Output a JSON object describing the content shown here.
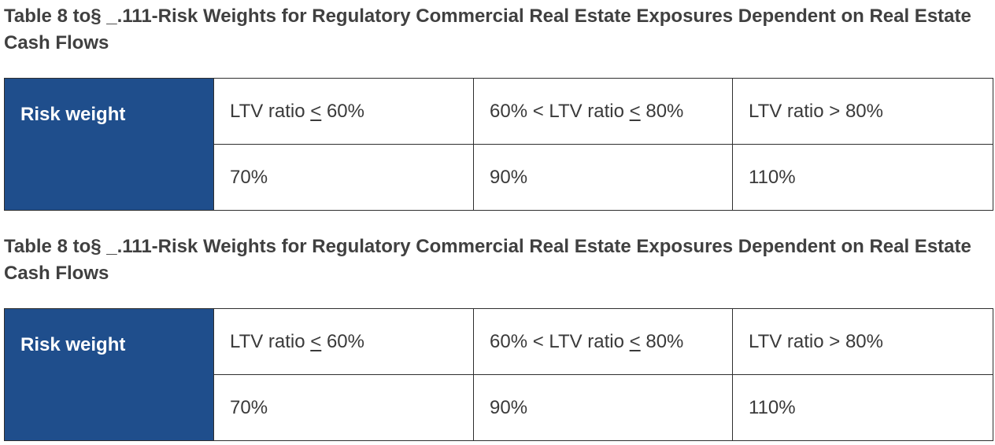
{
  "tables": [
    {
      "title": "Table 8 to§ _.111-Risk Weights for Regulatory Commercial Real Estate Exposures Dependent on Real Estate Cash Flows",
      "row_header": "Risk weight",
      "columns": [
        {
          "prefix": "LTV ratio ",
          "operator": "<",
          "suffix": " 60%"
        },
        {
          "prefix": "60% < LTV ratio ",
          "operator": "<",
          "suffix": " 80%"
        },
        {
          "prefix": "LTV ratio > 80%",
          "operator": "",
          "suffix": ""
        }
      ],
      "values": [
        "70%",
        "90%",
        "110%"
      ]
    },
    {
      "title": "Table 8 to§ _.111-Risk Weights for Regulatory Commercial Real Estate Exposures Dependent on Real Estate Cash Flows",
      "row_header": "Risk weight",
      "columns": [
        {
          "prefix": "LTV ratio ",
          "operator": "<",
          "suffix": " 60%"
        },
        {
          "prefix": "60% < LTV ratio ",
          "operator": "<",
          "suffix": " 80%"
        },
        {
          "prefix": "LTV ratio > 80%",
          "operator": "",
          "suffix": ""
        }
      ],
      "values": [
        "70%",
        "90%",
        "110%"
      ]
    }
  ],
  "colors": {
    "header_fill": "#1f4e8c",
    "header_text": "#ffffff",
    "border": "#2e2e2e",
    "body_text": "#3a3a3a"
  }
}
